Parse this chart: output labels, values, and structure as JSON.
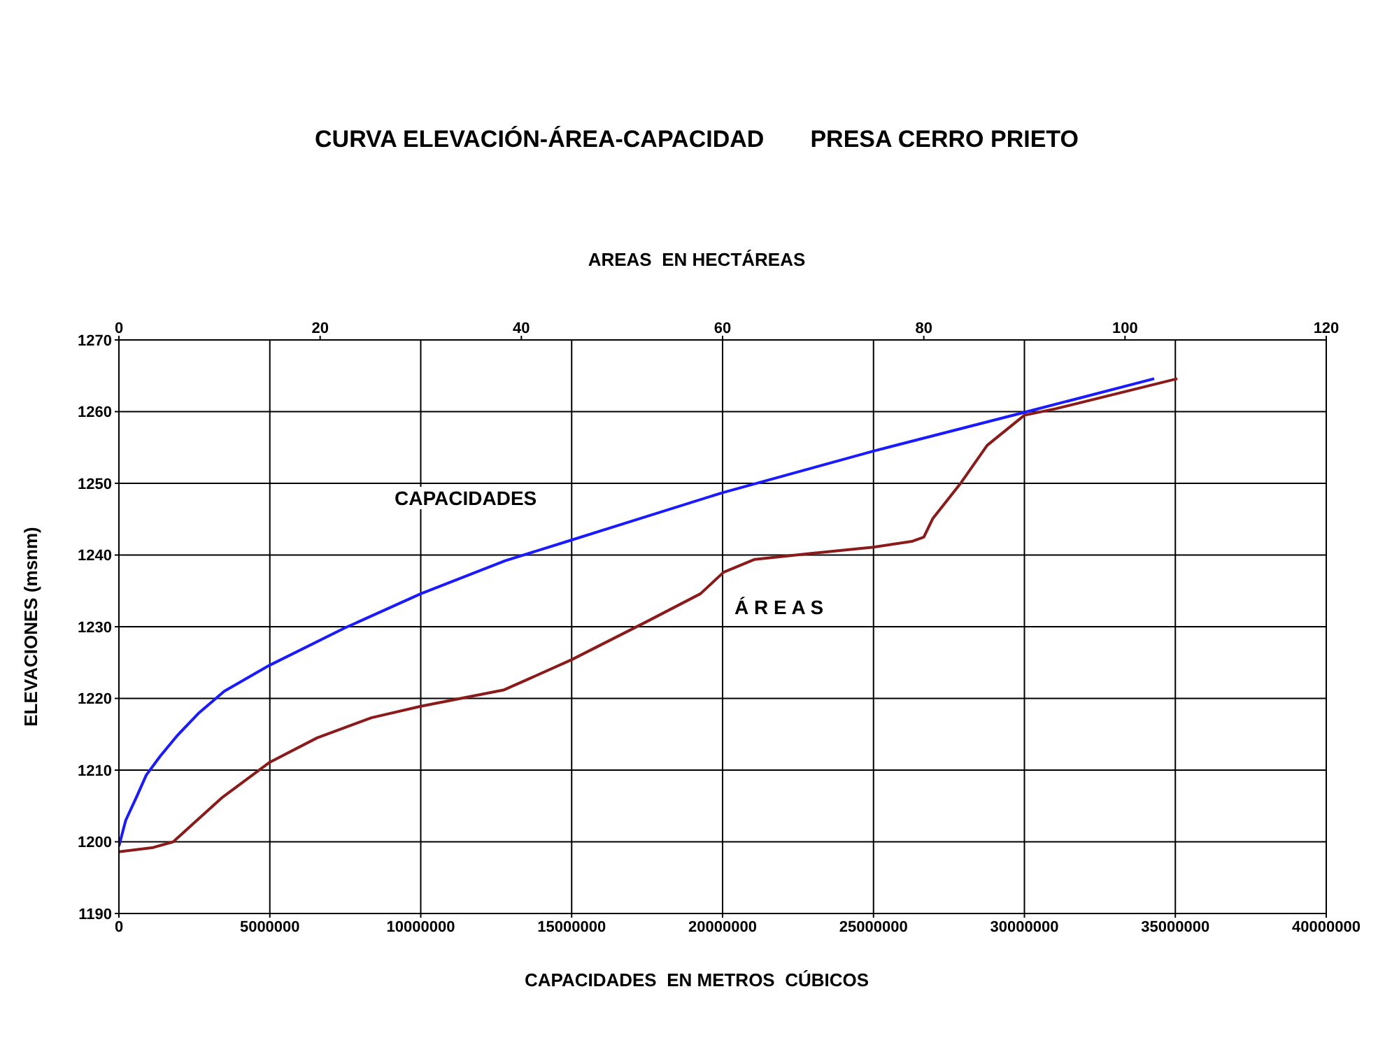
{
  "chart_data": {
    "type": "line",
    "title": "CURVA ELEVACIÓN-ÁREA-CAPACIDAD       PRESA CERRO PRIETO",
    "x2label": "AREAS  EN HECTÁREAS",
    "xlabel": "CAPACIDADES  EN METROS  CÚBICOS",
    "ylabel": "ELEVACIONES (msnm)",
    "xlim": [
      0,
      40000000
    ],
    "xticks": [
      0,
      5000000,
      10000000,
      15000000,
      20000000,
      25000000,
      30000000,
      35000000,
      40000000
    ],
    "x2lim": [
      0,
      120
    ],
    "x2ticks": [
      0,
      20,
      40,
      60,
      80,
      100,
      120
    ],
    "ylim": [
      1190,
      1270
    ],
    "yticks": [
      1190,
      1200,
      1210,
      1220,
      1230,
      1240,
      1250,
      1260,
      1270
    ],
    "grid": true,
    "series": [
      {
        "color": "#1a1aff",
        "x": [
          0,
          226000,
          589000,
          906000,
          1360000,
          1950000,
          2630000,
          3490000,
          4980000,
          7470000,
          10000000,
          12800000,
          15000000,
          20000000,
          25000000,
          30000000,
          34300000
        ],
        "values": [
          1199.4,
          1203,
          1206.3,
          1209.3,
          1211.9,
          1214.9,
          1217.9,
          1221,
          1224.6,
          1229.8,
          1234.6,
          1239.2,
          1242.1,
          1248.7,
          1254.5,
          1259.9,
          1264.6
        ]
      },
      {
        "color": "#8b1a1a",
        "axis": "x2",
        "x": [
          0,
          3.4,
          5.4,
          7.2,
          10.2,
          15,
          19.7,
          25.1,
          30,
          38.3,
          45,
          52.3,
          57.8,
          60.1,
          63.2,
          68.6,
          75,
          78.8,
          80,
          80.9,
          83.6,
          86.3,
          90,
          93.1,
          105.2
        ],
        "values": [
          1198.6,
          1199.2,
          1200,
          1202.3,
          1206.1,
          1211.1,
          1214.5,
          1217.3,
          1218.9,
          1221.2,
          1225.4,
          1230.6,
          1234.6,
          1237.6,
          1239.4,
          1240.2,
          1241.1,
          1241.9,
          1242.5,
          1245.1,
          1249.9,
          1255.3,
          1259.5,
          1260.4,
          1264.6
        ]
      }
    ],
    "annotations": [
      "CAPACIDADES",
      "Á R E A S"
    ]
  }
}
